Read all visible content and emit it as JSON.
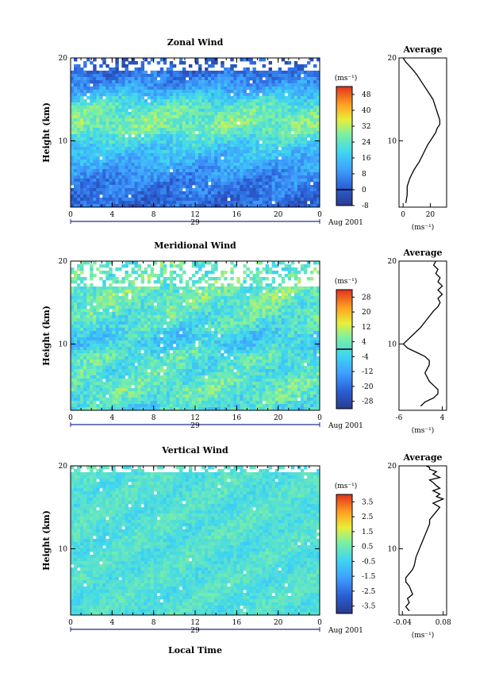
{
  "page": {
    "xlabel": "Local Time",
    "date_label": "Aug 2001",
    "day_label": "29",
    "height_label": "Height (km)",
    "unit_label": "(ms⁻¹)"
  },
  "chart_data": [
    {
      "type": "heatmap",
      "title": "Zonal Wind",
      "xlabel": "Local Time",
      "ylabel": "Height (km)",
      "x_ticks": [
        "0",
        "4",
        "8",
        "12",
        "16",
        "20",
        "0"
      ],
      "y_ticks": [
        "20",
        "10"
      ],
      "xlim": [
        0,
        24
      ],
      "ylim": [
        2,
        20
      ],
      "colorbar": {
        "label": "(ms⁻¹)",
        "ticks": [
          "48",
          "40",
          "32",
          "24",
          "16",
          "8",
          "0",
          "-8"
        ],
        "range": [
          -8,
          52
        ],
        "contour_level": 0
      },
      "profile_mean_ms": [
        [
          2.5,
          2
        ],
        [
          4,
          4
        ],
        [
          6,
          8
        ],
        [
          8,
          14
        ],
        [
          9.5,
          18
        ],
        [
          10.5,
          22
        ],
        [
          11,
          25
        ],
        [
          12,
          27
        ],
        [
          13,
          26
        ],
        [
          14,
          24
        ],
        [
          15,
          19
        ],
        [
          16,
          13
        ],
        [
          17,
          8
        ],
        [
          18,
          4
        ],
        [
          19,
          1
        ],
        [
          20,
          0
        ]
      ]
    },
    {
      "type": "line",
      "title": "Average",
      "xlabel": "(ms⁻¹)",
      "x_ticks": [
        "0",
        "20"
      ],
      "y_ticks": [
        "20",
        "10"
      ],
      "xlim": [
        -3,
        32
      ],
      "ylim": [
        2,
        20
      ],
      "series": [
        {
          "values_x": [
            2,
            3,
            3,
            5,
            8,
            12,
            15,
            18,
            22,
            24,
            25,
            27,
            27,
            26,
            24,
            22,
            18,
            14,
            10,
            6,
            2,
            0
          ],
          "values_y": [
            2.5,
            3.5,
            4.5,
            5.5,
            6.5,
            7.5,
            8.5,
            9.5,
            10.5,
            11.0,
            11.5,
            12.0,
            12.5,
            13.0,
            14.0,
            15.0,
            16.0,
            17.0,
            18.0,
            18.8,
            19.5,
            20.0
          ]
        }
      ]
    },
    {
      "type": "heatmap",
      "title": "Meridional Wind",
      "xlabel": "Local Time",
      "ylabel": "Height (km)",
      "x_ticks": [
        "0",
        "4",
        "8",
        "12",
        "16",
        "20",
        "0"
      ],
      "y_ticks": [
        "20",
        "10"
      ],
      "xlim": [
        0,
        24
      ],
      "ylim": [
        2,
        20
      ],
      "colorbar": {
        "label": "(ms⁻¹)",
        "ticks": [
          "28",
          "20",
          "12",
          "4",
          "-4",
          "-12",
          "-20",
          "-28"
        ],
        "range": [
          -32,
          32
        ],
        "contour_level": 0
      },
      "profile_mean_ms": [
        [
          2.5,
          -1
        ],
        [
          4,
          2
        ],
        [
          5,
          3
        ],
        [
          6,
          1
        ],
        [
          7,
          0
        ],
        [
          8,
          1
        ],
        [
          9,
          0
        ],
        [
          10,
          -5
        ],
        [
          11,
          -4
        ],
        [
          12,
          -1
        ],
        [
          13,
          1
        ],
        [
          14,
          2
        ],
        [
          15,
          3
        ],
        [
          16,
          4
        ],
        [
          17,
          3
        ],
        [
          18,
          3
        ],
        [
          19,
          2
        ],
        [
          20,
          2
        ]
      ]
    },
    {
      "type": "line",
      "title": "Average",
      "xlabel": "(ms⁻¹)",
      "x_ticks": [
        "-6",
        "4"
      ],
      "y_ticks": [
        "20",
        "10"
      ],
      "xlim": [
        -6,
        5
      ],
      "ylim": [
        2,
        20
      ],
      "series": [
        {
          "values_x": [
            -1,
            0,
            2,
            3,
            3,
            2,
            1,
            0.5,
            0,
            0.5,
            1,
            1,
            0,
            -2,
            -4,
            -5,
            -3,
            -1,
            0.5,
            2,
            3,
            3.5,
            3,
            4,
            3,
            4,
            3,
            3.5,
            2.5,
            3,
            2,
            2.5
          ],
          "values_y": [
            2.5,
            3.0,
            3.5,
            4.0,
            4.5,
            5.0,
            5.5,
            6.0,
            6.5,
            7.0,
            7.5,
            8.0,
            8.5,
            9.0,
            9.5,
            10.0,
            11.0,
            12.0,
            13.0,
            14.0,
            14.5,
            15.0,
            15.5,
            16.0,
            16.5,
            17.0,
            17.5,
            18.0,
            18.5,
            19.0,
            19.5,
            20.0
          ]
        }
      ]
    },
    {
      "type": "heatmap",
      "title": "Vertical Wind",
      "xlabel": "Local Time",
      "ylabel": "Height (km)",
      "x_ticks": [
        "0",
        "4",
        "8",
        "12",
        "16",
        "20",
        "0"
      ],
      "y_ticks": [
        "20",
        "10"
      ],
      "xlim": [
        0,
        24
      ],
      "ylim": [
        2,
        20
      ],
      "colorbar": {
        "label": "(ms⁻¹)",
        "ticks": [
          "3.5",
          "2.5",
          "1.5",
          "0.5",
          "-0.5",
          "-1.5",
          "-2.5",
          "-3.5"
        ],
        "range": [
          -4,
          4
        ]
      }
    },
    {
      "type": "line",
      "title": "Average",
      "xlabel": "(ms⁻¹)",
      "x_ticks": [
        "-0.04",
        "0.08"
      ],
      "y_ticks": [
        "20",
        "10"
      ],
      "xlim": [
        -0.05,
        0.09
      ],
      "ylim": [
        2,
        20
      ],
      "series": [
        {
          "values_x": [
            -0.02,
            -0.03,
            -0.02,
            -0.025,
            -0.01,
            -0.015,
            -0.02,
            -0.03,
            -0.03,
            -0.02,
            -0.01,
            -0.005,
            0.0,
            0.01,
            0.02,
            0.03,
            0.04,
            0.04,
            0.05,
            0.06,
            0.07,
            0.05,
            0.08,
            0.06,
            0.07,
            0.05,
            0.07,
            0.06,
            0.05,
            0.04,
            0.07,
            0.05,
            0.06,
            0.04,
            0.04,
            0.03
          ],
          "values_y": [
            2.5,
            3.0,
            3.5,
            4.0,
            4.5,
            5.0,
            5.5,
            6.0,
            6.5,
            7.0,
            7.5,
            8.0,
            9.0,
            10.0,
            11.0,
            12.0,
            13.0,
            13.5,
            14.0,
            14.5,
            15.0,
            15.5,
            16.0,
            16.3,
            16.6,
            17.0,
            17.3,
            17.6,
            18.0,
            18.3,
            18.6,
            19.0,
            19.3,
            19.6,
            19.8,
            20.0
          ]
        }
      ]
    }
  ]
}
